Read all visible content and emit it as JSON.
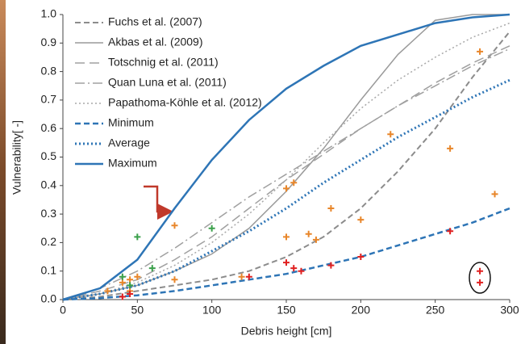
{
  "chart_data": {
    "type": "line",
    "xlabel": "Debris height [cm]",
    "ylabel": "Vulnerability[ -]",
    "xlim": [
      0,
      300
    ],
    "ylim": [
      0,
      1
    ],
    "xticks": [
      0,
      50,
      100,
      150,
      200,
      250,
      300
    ],
    "yticks": [
      {
        "value": 0,
        "label": "0.0"
      },
      0.1,
      0.2,
      0.3,
      0.4,
      0.5,
      0.6,
      0.7,
      0.8,
      0.9,
      {
        "value": 1,
        "label": "1.0"
      }
    ],
    "legend": "upper left",
    "x": [
      0,
      25,
      50,
      75,
      100,
      125,
      150,
      175,
      200,
      225,
      250,
      275,
      300
    ],
    "series": [
      {
        "name": "Fuchs et al. (2007)",
        "color": "#8c8c8c",
        "dash": "dashed",
        "linewidth": 2,
        "values": [
          0,
          0.01,
          0.03,
          0.05,
          0.07,
          0.1,
          0.15,
          0.22,
          0.32,
          0.45,
          0.6,
          0.78,
          0.94
        ]
      },
      {
        "name": "Akbas et al. (2009)",
        "color": "#9a9a9a",
        "dash": "solid",
        "linewidth": 1.5,
        "values": [
          0,
          0.02,
          0.05,
          0.1,
          0.16,
          0.25,
          0.38,
          0.53,
          0.7,
          0.86,
          0.98,
          1.0,
          1.0
        ]
      },
      {
        "name": "Totschnig et al. (2011)",
        "color": "#a0a0a0",
        "dash": "long-dash",
        "linewidth": 1.5,
        "values": [
          0,
          0.03,
          0.07,
          0.14,
          0.22,
          0.32,
          0.42,
          0.51,
          0.6,
          0.68,
          0.76,
          0.83,
          0.89
        ]
      },
      {
        "name": "Quan Luna et al. (2011)",
        "color": "#a0a0a0",
        "dash": "dash-dot",
        "linewidth": 1.5,
        "values": [
          0,
          0.04,
          0.1,
          0.18,
          0.27,
          0.36,
          0.44,
          0.52,
          0.6,
          0.68,
          0.75,
          0.82,
          0.88
        ]
      },
      {
        "name": "Papathoma-Köhle et al. (2012)",
        "color": "#a8a8a8",
        "dash": "dotted",
        "linewidth": 1.5,
        "values": [
          0,
          0.02,
          0.06,
          0.12,
          0.2,
          0.3,
          0.42,
          0.55,
          0.67,
          0.77,
          0.85,
          0.92,
          0.97
        ]
      },
      {
        "name": "Minimum",
        "color": "#2e75b6",
        "dash": "dashed",
        "linewidth": 2.5,
        "values": [
          0,
          0.005,
          0.015,
          0.03,
          0.05,
          0.07,
          0.09,
          0.12,
          0.15,
          0.19,
          0.23,
          0.27,
          0.32
        ]
      },
      {
        "name": "Average",
        "color": "#2e75b6",
        "dash": "dotted",
        "linewidth": 3,
        "values": [
          0,
          0.02,
          0.05,
          0.1,
          0.17,
          0.24,
          0.32,
          0.41,
          0.49,
          0.57,
          0.64,
          0.71,
          0.77
        ]
      },
      {
        "name": "Maximum",
        "color": "#2e75b6",
        "dash": "solid",
        "linewidth": 2.5,
        "values": [
          0,
          0.04,
          0.14,
          0.32,
          0.49,
          0.63,
          0.74,
          0.82,
          0.89,
          0.93,
          0.97,
          0.99,
          1.0
        ]
      }
    ],
    "points": [
      {
        "color": "#e8862a",
        "x": [
          30,
          40,
          45,
          45,
          50,
          75,
          75,
          120,
          150,
          155,
          150,
          165,
          170,
          180,
          200,
          220,
          260,
          280,
          290
        ],
        "y": [
          0.03,
          0.06,
          0.07,
          0.03,
          0.08,
          0.26,
          0.07,
          0.08,
          0.39,
          0.41,
          0.22,
          0.23,
          0.21,
          0.32,
          0.28,
          0.58,
          0.53,
          0.87,
          0.37
        ]
      },
      {
        "color": "#3aa04a",
        "x": [
          40,
          45,
          50,
          60,
          100
        ],
        "y": [
          0.08,
          0.05,
          0.22,
          0.11,
          0.25
        ]
      },
      {
        "color": "#e02020",
        "x": [
          40,
          45,
          125,
          150,
          155,
          160,
          180,
          200,
          260,
          280,
          280
        ],
        "y": [
          0.01,
          0.02,
          0.08,
          0.13,
          0.11,
          0.1,
          0.12,
          0.15,
          0.24,
          0.1,
          0.06
        ]
      }
    ]
  }
}
